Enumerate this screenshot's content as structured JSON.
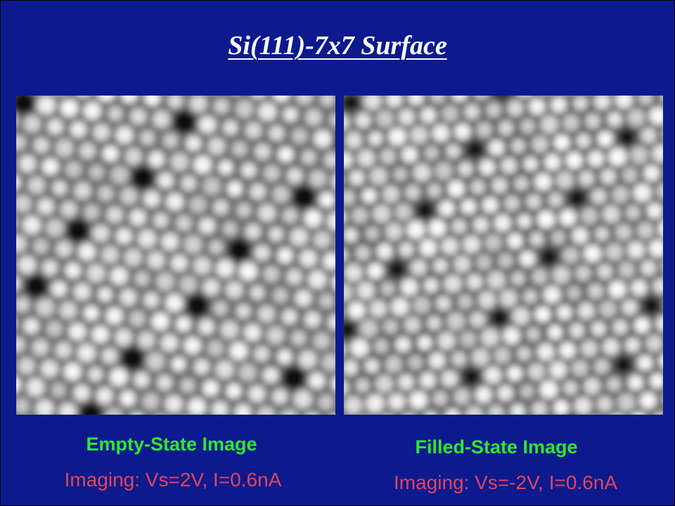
{
  "header": {
    "title": "Si(111)-7x7 Surface"
  },
  "panels": [
    {
      "caption": "Empty-State Image",
      "imaging": "Imaging: Vs=2V, I=0.6nA"
    },
    {
      "caption": "Filled-State Image",
      "imaging": "Imaging: Vs=-2V, I=0.6nA"
    }
  ]
}
